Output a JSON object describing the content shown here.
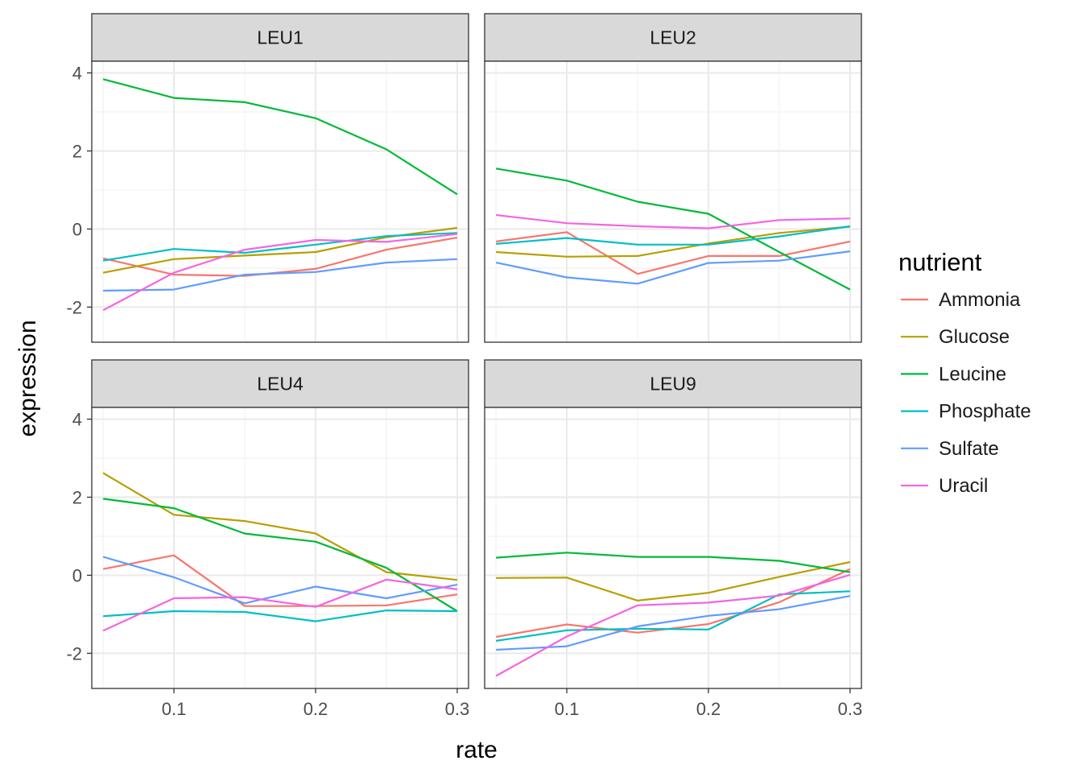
{
  "chart_data": {
    "type": "line",
    "xlabel": "rate",
    "ylabel": "expression",
    "xlim": [
      0.042,
      0.308
    ],
    "ylim": [
      -2.9,
      4.3
    ],
    "x_ticks": [
      0.1,
      0.2,
      0.3
    ],
    "x_tick_labels": [
      "0.1",
      "0.2",
      "0.3"
    ],
    "y_ticks": [
      -2,
      0,
      2,
      4
    ],
    "y_tick_labels": [
      "-2",
      "0",
      "2",
      "4"
    ],
    "grid": true,
    "legend": {
      "title": "nutrient",
      "placement": "right"
    },
    "x": [
      0.05,
      0.1,
      0.15,
      0.2,
      0.25,
      0.3
    ],
    "series_colors": {
      "Ammonia": "#F8766D",
      "Glucose": "#B79F00",
      "Leucine": "#00BA38",
      "Phosphate": "#00BFC4",
      "Sulfate": "#619CFF",
      "Uracil": "#F564E3"
    },
    "panels": [
      {
        "title": "LEU1",
        "series": [
          {
            "name": "Ammonia",
            "values": [
              -0.75,
              -1.17,
              -1.2,
              -1.02,
              -0.53,
              -0.22
            ]
          },
          {
            "name": "Glucose",
            "values": [
              -1.12,
              -0.77,
              -0.68,
              -0.59,
              -0.21,
              0.03
            ]
          },
          {
            "name": "Leucine",
            "values": [
              3.84,
              3.36,
              3.25,
              2.84,
              2.04,
              0.89
            ]
          },
          {
            "name": "Phosphate",
            "values": [
              -0.81,
              -0.51,
              -0.61,
              -0.4,
              -0.18,
              -0.1
            ]
          },
          {
            "name": "Sulfate",
            "values": [
              -1.58,
              -1.55,
              -1.17,
              -1.1,
              -0.86,
              -0.77
            ]
          },
          {
            "name": "Uracil",
            "values": [
              -2.08,
              -1.12,
              -0.53,
              -0.28,
              -0.33,
              -0.13
            ]
          }
        ]
      },
      {
        "title": "LEU2",
        "series": [
          {
            "name": "Ammonia",
            "values": [
              -0.32,
              -0.08,
              -1.15,
              -0.69,
              -0.69,
              -0.32
            ]
          },
          {
            "name": "Glucose",
            "values": [
              -0.59,
              -0.71,
              -0.69,
              -0.37,
              -0.1,
              0.06
            ]
          },
          {
            "name": "Leucine",
            "values": [
              1.55,
              1.24,
              0.7,
              0.39,
              -0.59,
              -1.55
            ]
          },
          {
            "name": "Phosphate",
            "values": [
              -0.38,
              -0.23,
              -0.4,
              -0.4,
              -0.19,
              0.07
            ]
          },
          {
            "name": "Sulfate",
            "values": [
              -0.86,
              -1.24,
              -1.4,
              -0.87,
              -0.81,
              -0.57
            ]
          },
          {
            "name": "Uracil",
            "values": [
              0.36,
              0.15,
              0.07,
              0.02,
              0.23,
              0.27
            ]
          }
        ]
      },
      {
        "title": "LEU4",
        "series": [
          {
            "name": "Ammonia",
            "values": [
              0.16,
              0.51,
              -0.79,
              -0.79,
              -0.77,
              -0.49
            ]
          },
          {
            "name": "Glucose",
            "values": [
              2.62,
              1.55,
              1.39,
              1.07,
              0.08,
              -0.12
            ]
          },
          {
            "name": "Leucine",
            "values": [
              1.96,
              1.72,
              1.07,
              0.86,
              0.19,
              -0.92
            ]
          },
          {
            "name": "Phosphate",
            "values": [
              -1.05,
              -0.92,
              -0.94,
              -1.18,
              -0.9,
              -0.92
            ]
          },
          {
            "name": "Sulfate",
            "values": [
              0.47,
              -0.05,
              -0.72,
              -0.29,
              -0.59,
              -0.24
            ]
          },
          {
            "name": "Uracil",
            "values": [
              -1.42,
              -0.59,
              -0.56,
              -0.81,
              -0.11,
              -0.36
            ]
          }
        ]
      },
      {
        "title": "LEU9",
        "series": [
          {
            "name": "Ammonia",
            "values": [
              -1.58,
              -1.26,
              -1.47,
              -1.25,
              -0.69,
              0.16
            ]
          },
          {
            "name": "Glucose",
            "values": [
              -0.07,
              -0.06,
              -0.65,
              -0.45,
              -0.04,
              0.34
            ]
          },
          {
            "name": "Leucine",
            "values": [
              0.45,
              0.58,
              0.47,
              0.47,
              0.37,
              0.08
            ]
          },
          {
            "name": "Phosphate",
            "values": [
              -1.68,
              -1.41,
              -1.37,
              -1.39,
              -0.49,
              -0.41
            ]
          },
          {
            "name": "Sulfate",
            "values": [
              -1.91,
              -1.82,
              -1.31,
              -1.04,
              -0.87,
              -0.53
            ]
          },
          {
            "name": "Uracil",
            "values": [
              -2.58,
              -1.57,
              -0.77,
              -0.7,
              -0.52,
              0.01
            ]
          }
        ]
      }
    ]
  }
}
